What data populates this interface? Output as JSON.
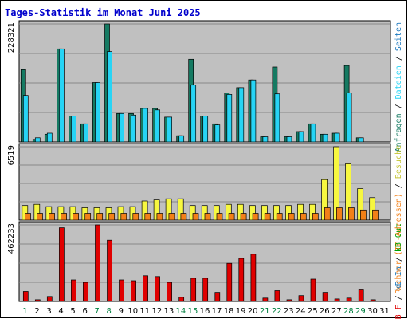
{
  "chart_data": {
    "type": "bar",
    "title": "Tages-Statistik im Monat Juni 2025",
    "categories": [
      "1",
      "2",
      "3",
      "4",
      "5",
      "6",
      "7",
      "8",
      "9",
      "10",
      "11",
      "12",
      "13",
      "14",
      "15",
      "16",
      "17",
      "18",
      "19",
      "20",
      "21",
      "22",
      "23",
      "24",
      "25",
      "26",
      "27",
      "28",
      "29",
      "30",
      "31"
    ],
    "weekend_days": [
      1,
      7,
      8,
      14,
      15,
      21,
      22,
      28,
      29
    ],
    "colors": {
      "title": "#0000cc",
      "background": "#c0c0c0",
      "frame": "#000000",
      "weekend_label": "#008040",
      "weekday_label": "#000000",
      "anfragen": "#157a62",
      "dateien": "#27d4f5",
      "seiten": "#1a78bf",
      "besuche": "#f7f740",
      "rechner": "#f28018",
      "kb_in": "#e00000"
    },
    "panels": [
      {
        "id": "requests",
        "max_label": "228321",
        "ylim": [
          0,
          228321
        ],
        "side_label": [
          {
            "text": "Anfragen",
            "color": "#157a62"
          },
          {
            "text": " / ",
            "color": "#000000"
          },
          {
            "text": "Dateien",
            "color": "#27d4f5"
          },
          {
            "text": " / ",
            "color": "#000000"
          },
          {
            "text": "Seiten",
            "color": "#1a78bf"
          }
        ],
        "series": [
          {
            "name": "Anfragen",
            "color": "#157a62",
            "values": [
              140000,
              5000,
              15000,
              180000,
              50000,
              35000,
              115000,
              228321,
              55000,
              55000,
              65000,
              65000,
              48000,
              12000,
              160000,
              50000,
              35000,
              95000,
              105000,
              120000,
              10000,
              145000,
              10000,
              20000,
              35000,
              15000,
              17000,
              148000,
              8000,
              0,
              0
            ]
          },
          {
            "name": "Dateien",
            "color": "#27d4f5",
            "values": [
              90000,
              8000,
              17000,
              180000,
              50000,
              35000,
              115000,
              175000,
              55000,
              52000,
              65000,
              62000,
              48000,
              12000,
              110000,
              50000,
              33000,
              92000,
              105000,
              120000,
              10000,
              93000,
              10000,
              20000,
              35000,
              15000,
              17000,
              95000,
              8000,
              0,
              0
            ]
          },
          {
            "name": "Seiten",
            "color": "#1a78bf",
            "values": [
              0,
              0,
              0,
              0,
              0,
              0,
              0,
              0,
              0,
              0,
              0,
              0,
              0,
              0,
              0,
              0,
              0,
              0,
              0,
              0,
              0,
              0,
              0,
              0,
              0,
              0,
              0,
              0,
              0,
              0,
              0
            ]
          }
        ]
      },
      {
        "id": "visits",
        "max_label": "6519",
        "ylim": [
          0,
          6519
        ],
        "side_label": [
          {
            "text": "Rechner (IP-Adressen)",
            "color": "#f28018"
          },
          {
            "text": " / ",
            "color": "#000000"
          },
          {
            "text": "Besuche",
            "color": "#c6c636"
          }
        ],
        "series": [
          {
            "name": "Besuche",
            "color": "#f7f740",
            "values": [
              1300,
              1400,
              1200,
              1200,
              1200,
              1100,
              1100,
              1100,
              1200,
              1200,
              1700,
              1800,
              1900,
              1900,
              1300,
              1300,
              1300,
              1400,
              1400,
              1300,
              1300,
              1300,
              1300,
              1400,
              1400,
              3600,
              6519,
              5000,
              2800,
              2000,
              0
            ]
          },
          {
            "name": "Rechner",
            "color": "#f28018",
            "values": [
              600,
              600,
              600,
              600,
              600,
              600,
              600,
              600,
              600,
              600,
              600,
              600,
              600,
              600,
              600,
              600,
              600,
              600,
              600,
              600,
              600,
              600,
              600,
              600,
              600,
              1100,
              1100,
              1100,
              900,
              900,
              0
            ]
          }
        ]
      },
      {
        "id": "traffic",
        "max_label": "462233",
        "ylim": [
          0,
          462233
        ],
        "side_label": [
          {
            "text": "kB F",
            "color": "#e00000"
          },
          {
            "text": " / ",
            "color": "#000000"
          },
          {
            "text": "kB In",
            "color": "#1a78bf"
          },
          {
            "text": " / ",
            "color": "#000000"
          },
          {
            "text": "kB Out",
            "color": "#00a000"
          }
        ],
        "series": [
          {
            "name": "kB In",
            "color": "#e00000",
            "values": [
              60000,
              10000,
              30000,
              445000,
              130000,
              115000,
              462233,
              370000,
              130000,
              125000,
              155000,
              150000,
              115000,
              25000,
              140000,
              140000,
              55000,
              230000,
              260000,
              285000,
              20000,
              65000,
              10000,
              35000,
              135000,
              55000,
              15000,
              20000,
              70000,
              10000,
              0
            ]
          }
        ]
      }
    ]
  }
}
